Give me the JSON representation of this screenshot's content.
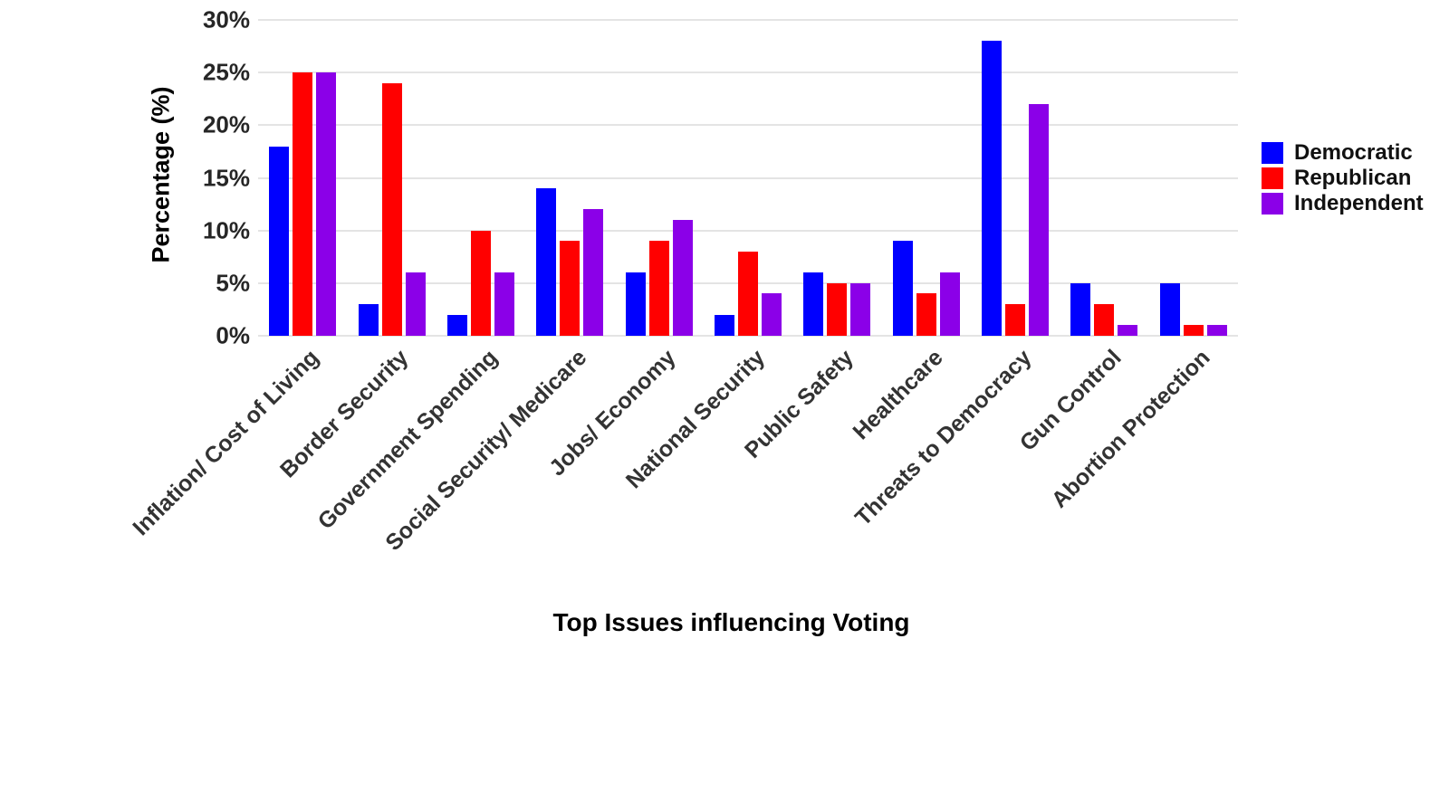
{
  "chart_data": {
    "type": "bar",
    "title": "",
    "xlabel": "Top Issues influencing Voting",
    "ylabel": "Percentage (%)",
    "categories": [
      "Inflation/ Cost of Living",
      "Border Security",
      "Government Spending",
      "Social Security/ Medicare",
      "Jobs/ Economy",
      "National Security",
      "Public Safety",
      "Healthcare",
      "Threats to Democracy",
      "Gun Control",
      "Abortion Protection"
    ],
    "series": [
      {
        "name": "Democratic",
        "color": "#0000FF",
        "values": [
          18,
          3,
          2,
          14,
          6,
          2,
          6,
          9,
          28,
          5,
          5
        ]
      },
      {
        "name": "Republican",
        "color": "#FF0000",
        "values": [
          25,
          24,
          10,
          9,
          9,
          8,
          5,
          4,
          3,
          3,
          1
        ]
      },
      {
        "name": "Independent",
        "color": "#8B00E8",
        "values": [
          25,
          6,
          6,
          12,
          11,
          4,
          5,
          6,
          22,
          1,
          1
        ]
      }
    ],
    "ylim": [
      0,
      30
    ],
    "yticks": [
      0,
      5,
      10,
      15,
      20,
      25,
      30
    ],
    "ytick_labels": [
      "0%",
      "5%",
      "10%",
      "15%",
      "20%",
      "25%",
      "30%"
    ],
    "grid": true,
    "legend_position": "right"
  },
  "colors": {
    "background": "#ffffff",
    "gridline": "#e4e4e4",
    "tick_label": "#262626",
    "x_tick_label": "#333333",
    "axis_title": "#000000"
  }
}
